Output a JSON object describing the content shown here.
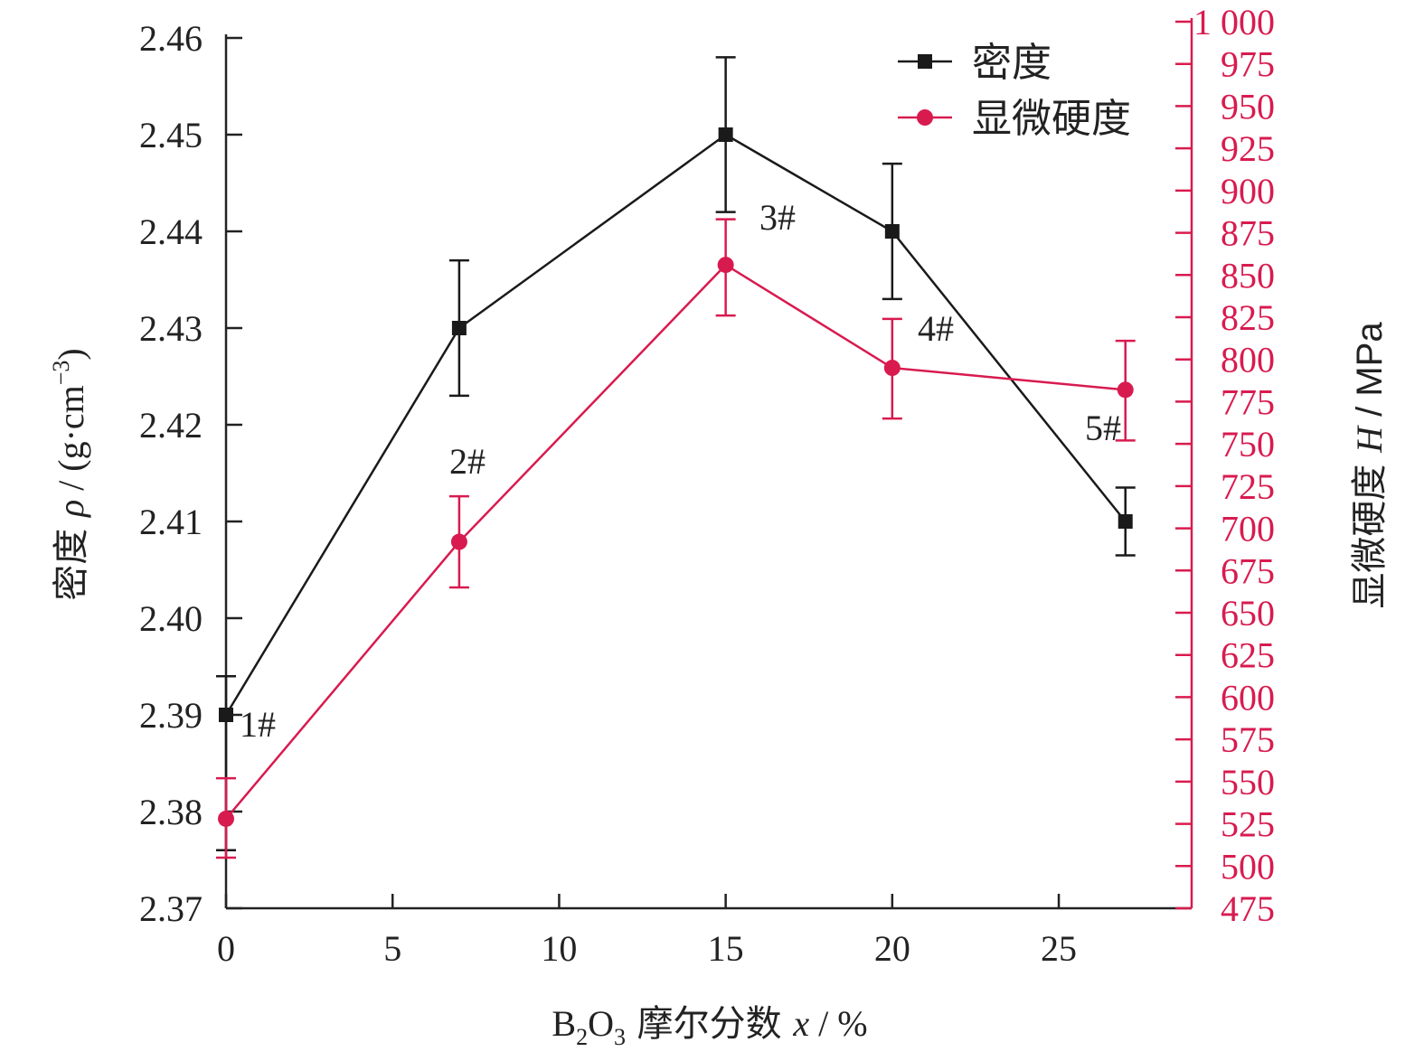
{
  "colors": {
    "density": "#1a1a1a",
    "hardness": "#d81b4f",
    "axis": "#222222"
  },
  "chart_data": {
    "type": "line",
    "x": [
      0,
      7,
      15,
      20,
      27
    ],
    "xticks": [
      "0",
      "5",
      "10",
      "15",
      "20",
      "25"
    ],
    "xtick_values": [
      0,
      5,
      10,
      15,
      20,
      25
    ],
    "xlim": [
      0,
      28.5
    ],
    "xlabel": {
      "main": "B",
      "sub1": "2",
      "mid": "O",
      "sub2": "3",
      "rest": " 摩尔分数 ",
      "var": "x",
      "unit": " / %"
    },
    "y_left": {
      "lim": [
        2.37,
        2.46
      ],
      "ticks": [
        "2.37",
        "2.38",
        "2.39",
        "2.40",
        "2.41",
        "2.42",
        "2.43",
        "2.44",
        "2.45",
        "2.46"
      ],
      "tick_values": [
        2.37,
        2.38,
        2.39,
        2.4,
        2.41,
        2.42,
        2.43,
        2.44,
        2.45,
        2.46
      ],
      "label": {
        "prefix": "密度 ",
        "var": "ρ",
        "unit": " / (g·cm",
        "sup": "−3",
        "close": ")"
      }
    },
    "y_right": {
      "lim": [
        475,
        1000
      ],
      "ticks": [
        "475",
        "500",
        "525",
        "550",
        "575",
        "600",
        "625",
        "650",
        "675",
        "700",
        "725",
        "750",
        "775",
        "800",
        "825",
        "850",
        "875",
        "900",
        "925",
        "950",
        "975",
        "1 000"
      ],
      "tick_values": [
        475,
        500,
        525,
        550,
        575,
        600,
        625,
        650,
        675,
        700,
        725,
        750,
        775,
        800,
        825,
        850,
        875,
        900,
        925,
        950,
        975,
        1000
      ],
      "label": {
        "prefix": "显微硬度 ",
        "var": "H",
        "unit": " / MPa"
      }
    },
    "series": [
      {
        "name": "密度",
        "axis": "left",
        "marker": "square",
        "values": [
          2.39,
          2.43,
          2.45,
          2.44,
          2.41
        ],
        "err_low": [
          2.376,
          2.423,
          2.442,
          2.433,
          2.4065
        ],
        "err_high": [
          2.394,
          2.437,
          2.458,
          2.447,
          2.4135
        ]
      },
      {
        "name": "显微硬度",
        "axis": "right",
        "marker": "circle",
        "values": [
          528,
          692,
          856,
          795,
          782
        ],
        "err_low": [
          505,
          665,
          826,
          765,
          752
        ],
        "err_high": [
          552,
          719,
          883,
          824,
          811
        ]
      }
    ],
    "point_labels": [
      "1#",
      "2#",
      "3#",
      "4#",
      "5#"
    ],
    "legend_position": "top-right",
    "grid": false
  }
}
